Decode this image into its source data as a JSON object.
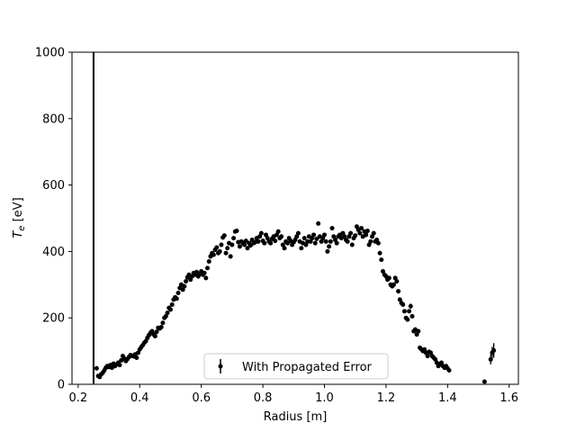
{
  "chart_data": {
    "type": "scatter",
    "title": "",
    "xlabel": "Radius [m]",
    "ylabel_main": "T",
    "ylabel_sub": "e",
    "ylabel_unit": " [eV]",
    "xlim": [
      0.18,
      1.63
    ],
    "ylim": [
      0,
      1000
    ],
    "xticks": [
      0.2,
      0.4,
      0.6,
      0.8,
      1.0,
      1.2,
      1.4,
      1.6
    ],
    "xtick_labels": [
      "0.2",
      "0.4",
      "0.6",
      "0.8",
      "1.0",
      "1.2",
      "1.4",
      "1.6"
    ],
    "yticks": [
      0,
      200,
      400,
      600,
      800,
      1000
    ],
    "ytick_labels": [
      "0",
      "200",
      "400",
      "600",
      "800",
      "1000"
    ],
    "vline_x": 0.25,
    "grid": false,
    "legend": {
      "placement": "lower-center",
      "label": "With Propagated Error"
    },
    "series": [
      {
        "name": "With Propagated Error",
        "color": "#000000",
        "points": [
          [
            0.26,
            48,
            6
          ],
          [
            0.265,
            25,
            6
          ],
          [
            0.27,
            22,
            6
          ],
          [
            0.275,
            30,
            6
          ],
          [
            0.28,
            35,
            6
          ],
          [
            0.285,
            42,
            6
          ],
          [
            0.29,
            50,
            6
          ],
          [
            0.295,
            55,
            6
          ],
          [
            0.3,
            52,
            6
          ],
          [
            0.305,
            58,
            6
          ],
          [
            0.31,
            50,
            6
          ],
          [
            0.315,
            62,
            6
          ],
          [
            0.32,
            55,
            6
          ],
          [
            0.325,
            60,
            6
          ],
          [
            0.33,
            65,
            6
          ],
          [
            0.335,
            58,
            6
          ],
          [
            0.34,
            72,
            6
          ],
          [
            0.345,
            85,
            6
          ],
          [
            0.35,
            78,
            6
          ],
          [
            0.355,
            70,
            6
          ],
          [
            0.36,
            76,
            6
          ],
          [
            0.365,
            82,
            6
          ],
          [
            0.37,
            88,
            6
          ],
          [
            0.375,
            86,
            6
          ],
          [
            0.38,
            84,
            6
          ],
          [
            0.385,
            90,
            6
          ],
          [
            0.39,
            80,
            6
          ],
          [
            0.395,
            95,
            6
          ],
          [
            0.4,
            105,
            6
          ],
          [
            0.405,
            112,
            6
          ],
          [
            0.41,
            118,
            6
          ],
          [
            0.415,
            125,
            6
          ],
          [
            0.42,
            130,
            6
          ],
          [
            0.425,
            140,
            6
          ],
          [
            0.43,
            148,
            6
          ],
          [
            0.435,
            155,
            6
          ],
          [
            0.44,
            160,
            6
          ],
          [
            0.445,
            150,
            6
          ],
          [
            0.45,
            145,
            6
          ],
          [
            0.455,
            158,
            6
          ],
          [
            0.46,
            170,
            6
          ],
          [
            0.465,
            168,
            6
          ],
          [
            0.47,
            172,
            6
          ],
          [
            0.475,
            185,
            6
          ],
          [
            0.48,
            200,
            6
          ],
          [
            0.485,
            205,
            6
          ],
          [
            0.49,
            215,
            6
          ],
          [
            0.495,
            230,
            6
          ],
          [
            0.5,
            225,
            6
          ],
          [
            0.505,
            240,
            6
          ],
          [
            0.51,
            255,
            6
          ],
          [
            0.515,
            262,
            6
          ],
          [
            0.52,
            258,
            6
          ],
          [
            0.525,
            275,
            6
          ],
          [
            0.53,
            290,
            6
          ],
          [
            0.535,
            300,
            6
          ],
          [
            0.54,
            285,
            6
          ],
          [
            0.545,
            295,
            6
          ],
          [
            0.55,
            310,
            6
          ],
          [
            0.555,
            322,
            6
          ],
          [
            0.56,
            330,
            6
          ],
          [
            0.565,
            315,
            6
          ],
          [
            0.57,
            325,
            6
          ],
          [
            0.575,
            335,
            6
          ],
          [
            0.58,
            330,
            6
          ],
          [
            0.585,
            338,
            6
          ],
          [
            0.59,
            325,
            6
          ],
          [
            0.595,
            332,
            6
          ],
          [
            0.6,
            340,
            6
          ],
          [
            0.605,
            330,
            6
          ],
          [
            0.61,
            335,
            6
          ],
          [
            0.615,
            320,
            6
          ],
          [
            0.62,
            350,
            6
          ],
          [
            0.625,
            370,
            6
          ],
          [
            0.63,
            385,
            6
          ],
          [
            0.635,
            395,
            6
          ],
          [
            0.64,
            390,
            6
          ],
          [
            0.645,
            405,
            6
          ],
          [
            0.65,
            412,
            6
          ],
          [
            0.655,
            395,
            6
          ],
          [
            0.66,
            400,
            6
          ],
          [
            0.665,
            420,
            6
          ],
          [
            0.67,
            442,
            6
          ],
          [
            0.675,
            448,
            6
          ],
          [
            0.68,
            395,
            6
          ],
          [
            0.685,
            410,
            6
          ],
          [
            0.69,
            425,
            6
          ],
          [
            0.695,
            385,
            6
          ],
          [
            0.7,
            420,
            6
          ],
          [
            0.705,
            440,
            6
          ],
          [
            0.71,
            460,
            6
          ],
          [
            0.715,
            462,
            6
          ],
          [
            0.72,
            428,
            6
          ],
          [
            0.725,
            415,
            6
          ],
          [
            0.73,
            430,
            6
          ],
          [
            0.735,
            425,
            6
          ],
          [
            0.74,
            420,
            6
          ],
          [
            0.745,
            432,
            6
          ],
          [
            0.75,
            410,
            6
          ],
          [
            0.755,
            425,
            6
          ],
          [
            0.76,
            418,
            6
          ],
          [
            0.765,
            435,
            6
          ],
          [
            0.77,
            425,
            6
          ],
          [
            0.775,
            428,
            6
          ],
          [
            0.78,
            440,
            6
          ],
          [
            0.785,
            430,
            6
          ],
          [
            0.79,
            445,
            6
          ],
          [
            0.795,
            455,
            6
          ],
          [
            0.8,
            432,
            6
          ],
          [
            0.805,
            425,
            6
          ],
          [
            0.81,
            450,
            6
          ],
          [
            0.815,
            440,
            6
          ],
          [
            0.82,
            430,
            6
          ],
          [
            0.825,
            425,
            6
          ],
          [
            0.83,
            438,
            6
          ],
          [
            0.835,
            445,
            6
          ],
          [
            0.84,
            432,
            6
          ],
          [
            0.845,
            450,
            6
          ],
          [
            0.85,
            460,
            6
          ],
          [
            0.855,
            440,
            6
          ],
          [
            0.86,
            445,
            6
          ],
          [
            0.865,
            420,
            6
          ],
          [
            0.87,
            410,
            6
          ],
          [
            0.875,
            430,
            6
          ],
          [
            0.88,
            425,
            6
          ],
          [
            0.885,
            440,
            6
          ],
          [
            0.89,
            432,
            6
          ],
          [
            0.895,
            420,
            6
          ],
          [
            0.9,
            428,
            6
          ],
          [
            0.905,
            435,
            6
          ],
          [
            0.91,
            445,
            6
          ],
          [
            0.915,
            455,
            6
          ],
          [
            0.92,
            430,
            6
          ],
          [
            0.925,
            410,
            6
          ],
          [
            0.93,
            425,
            6
          ],
          [
            0.935,
            440,
            6
          ],
          [
            0.94,
            420,
            6
          ],
          [
            0.945,
            430,
            6
          ],
          [
            0.95,
            445,
            6
          ],
          [
            0.955,
            430,
            6
          ],
          [
            0.96,
            440,
            6
          ],
          [
            0.965,
            450,
            6
          ],
          [
            0.97,
            425,
            6
          ],
          [
            0.975,
            438,
            6
          ],
          [
            0.98,
            484,
            6
          ],
          [
            0.985,
            445,
            6
          ],
          [
            0.99,
            430,
            6
          ],
          [
            0.995,
            440,
            6
          ],
          [
            1.0,
            450,
            6
          ],
          [
            1.005,
            430,
            6
          ],
          [
            1.01,
            400,
            6
          ],
          [
            1.015,
            415,
            6
          ],
          [
            1.02,
            430,
            6
          ],
          [
            1.025,
            470,
            6
          ],
          [
            1.03,
            445,
            6
          ],
          [
            1.035,
            435,
            6
          ],
          [
            1.04,
            425,
            6
          ],
          [
            1.045,
            445,
            6
          ],
          [
            1.05,
            450,
            6
          ],
          [
            1.055,
            440,
            6
          ],
          [
            1.06,
            455,
            6
          ],
          [
            1.065,
            445,
            6
          ],
          [
            1.07,
            435,
            6
          ],
          [
            1.075,
            430,
            6
          ],
          [
            1.08,
            445,
            6
          ],
          [
            1.085,
            455,
            6
          ],
          [
            1.09,
            420,
            6
          ],
          [
            1.095,
            440,
            6
          ],
          [
            1.1,
            448,
            6
          ],
          [
            1.105,
            475,
            6
          ],
          [
            1.11,
            465,
            6
          ],
          [
            1.115,
            455,
            6
          ],
          [
            1.12,
            470,
            6
          ],
          [
            1.125,
            445,
            6
          ],
          [
            1.13,
            460,
            6
          ],
          [
            1.135,
            450,
            6
          ],
          [
            1.14,
            462,
            6
          ],
          [
            1.145,
            420,
            6
          ],
          [
            1.15,
            430,
            6
          ],
          [
            1.155,
            445,
            6
          ],
          [
            1.16,
            455,
            6
          ],
          [
            1.165,
            430,
            6
          ],
          [
            1.17,
            435,
            6
          ],
          [
            1.175,
            425,
            6
          ],
          [
            1.18,
            395,
            6
          ],
          [
            1.185,
            375,
            6
          ],
          [
            1.19,
            340,
            6
          ],
          [
            1.195,
            330,
            6
          ],
          [
            1.2,
            325,
            6
          ],
          [
            1.205,
            315,
            6
          ],
          [
            1.21,
            320,
            6
          ],
          [
            1.215,
            300,
            6
          ],
          [
            1.22,
            295,
            6
          ],
          [
            1.225,
            300,
            6
          ],
          [
            1.23,
            320,
            6
          ],
          [
            1.235,
            310,
            6
          ],
          [
            1.24,
            280,
            6
          ],
          [
            1.245,
            255,
            6
          ],
          [
            1.25,
            245,
            6
          ],
          [
            1.255,
            240,
            6
          ],
          [
            1.26,
            220,
            6
          ],
          [
            1.265,
            200,
            6
          ],
          [
            1.27,
            195,
            6
          ],
          [
            1.275,
            220,
            6
          ],
          [
            1.28,
            235,
            8
          ],
          [
            1.285,
            205,
            6
          ],
          [
            1.29,
            160,
            6
          ],
          [
            1.295,
            165,
            6
          ],
          [
            1.3,
            150,
            6
          ],
          [
            1.305,
            160,
            6
          ],
          [
            1.31,
            110,
            6
          ],
          [
            1.315,
            105,
            6
          ],
          [
            1.32,
            100,
            6
          ],
          [
            1.325,
            105,
            6
          ],
          [
            1.33,
            95,
            6
          ],
          [
            1.335,
            85,
            6
          ],
          [
            1.34,
            98,
            6
          ],
          [
            1.345,
            95,
            6
          ],
          [
            1.35,
            85,
            6
          ],
          [
            1.355,
            80,
            6
          ],
          [
            1.36,
            75,
            6
          ],
          [
            1.365,
            65,
            6
          ],
          [
            1.37,
            55,
            6
          ],
          [
            1.375,
            60,
            6
          ],
          [
            1.38,
            65,
            6
          ],
          [
            1.385,
            55,
            6
          ],
          [
            1.39,
            50,
            6
          ],
          [
            1.395,
            55,
            6
          ],
          [
            1.4,
            48,
            6
          ],
          [
            1.405,
            42,
            6
          ],
          [
            1.52,
            8,
            4
          ],
          [
            1.54,
            75,
            15
          ],
          [
            1.545,
            95,
            18
          ],
          [
            1.55,
            102,
            22
          ]
        ]
      }
    ]
  }
}
